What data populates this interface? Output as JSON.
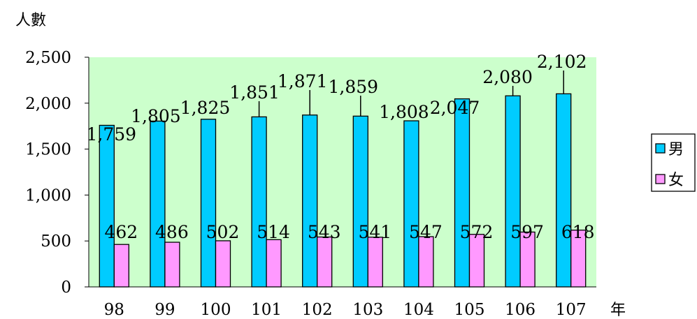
{
  "chart_data": {
    "type": "bar",
    "ylabel": "人數",
    "xlabel": "年",
    "categories": [
      "98",
      "99",
      "100",
      "101",
      "102",
      "103",
      "104",
      "105",
      "106",
      "107"
    ],
    "ylim": [
      0,
      2500
    ],
    "yticks": [
      "0",
      "500",
      "1,000",
      "1,500",
      "2,000",
      "2,500"
    ],
    "ytick_values": [
      0,
      500,
      1000,
      1500,
      2000,
      2500
    ],
    "series": [
      {
        "name": "男",
        "color": "#00ccff",
        "values": [
          1759,
          1805,
          1825,
          1851,
          1871,
          1859,
          1808,
          2047,
          2080,
          2102
        ],
        "labels": [
          "1,759",
          "1,805",
          "1,825",
          "1,851",
          "1,871",
          "1,859",
          "1,808",
          "2,047",
          "2,080",
          "2,102"
        ]
      },
      {
        "name": "女",
        "color": "#ff99ff",
        "values": [
          462,
          486,
          502,
          514,
          543,
          541,
          547,
          572,
          597,
          618
        ],
        "labels": [
          "462",
          "486",
          "502",
          "514",
          "543",
          "541",
          "547",
          "572",
          "597",
          "618"
        ]
      }
    ],
    "plot_background": "#ccffcc",
    "grid": false,
    "legend": "right"
  }
}
